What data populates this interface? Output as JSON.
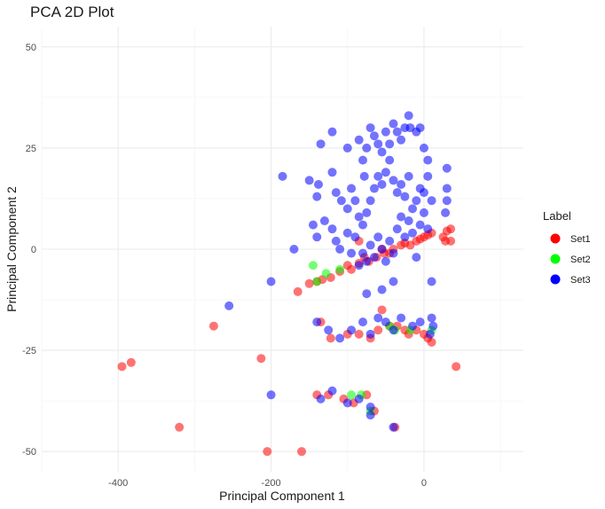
{
  "chart_data": {
    "type": "scatter",
    "title": "PCA 2D Plot",
    "xlabel": "Principal Component 1",
    "ylabel": "Principal Component 2",
    "xlim": [
      -500,
      130
    ],
    "ylim": [
      -55,
      55
    ],
    "x_ticks": [
      -400,
      -200,
      0
    ],
    "y_ticks": [
      -50,
      -25,
      0,
      25,
      50
    ],
    "grid": true,
    "legend": {
      "title": "Label",
      "placement": "right",
      "entries": [
        {
          "name": "Set1",
          "color": "#ff0000"
        },
        {
          "name": "Set2",
          "color": "#00ff00"
        },
        {
          "name": "Set3",
          "color": "#0000ff"
        }
      ]
    },
    "series": [
      {
        "name": "Set1",
        "color": "#ff0000",
        "points": [
          [
            -395,
            -29
          ],
          [
            -383,
            -28
          ],
          [
            -320,
            -44
          ],
          [
            -275,
            -19
          ],
          [
            -213,
            -27
          ],
          [
            -205,
            -50
          ],
          [
            -160,
            -50
          ],
          [
            -165,
            -10.5
          ],
          [
            -150,
            -8.5
          ],
          [
            -140,
            -8
          ],
          [
            -133,
            -7.5
          ],
          [
            -122,
            -7
          ],
          [
            -110,
            -5.5
          ],
          [
            -95,
            -5
          ],
          [
            -85,
            -3.5
          ],
          [
            -72,
            -3
          ],
          [
            -62,
            -2
          ],
          [
            -52,
            -1
          ],
          [
            -40,
            0
          ],
          [
            -30,
            1
          ],
          [
            -25,
            1.5
          ],
          [
            -18,
            1
          ],
          [
            -10,
            2
          ],
          [
            -5,
            2.5
          ],
          [
            0,
            3
          ],
          [
            5,
            3.5
          ],
          [
            10,
            4
          ],
          [
            25,
            3
          ],
          [
            30,
            4.5
          ],
          [
            35,
            5
          ],
          [
            28,
            2
          ],
          [
            35,
            2
          ],
          [
            -135,
            -18
          ],
          [
            -122,
            -22
          ],
          [
            -100,
            -21
          ],
          [
            -85,
            -21
          ],
          [
            -70,
            -22
          ],
          [
            -60,
            -20
          ],
          [
            -55,
            -15
          ],
          [
            -45,
            -19
          ],
          [
            -35,
            -19
          ],
          [
            -25,
            -20
          ],
          [
            -20,
            -21
          ],
          [
            -10,
            -20
          ],
          [
            0,
            -21
          ],
          [
            5,
            -22
          ],
          [
            10,
            -23
          ],
          [
            -140,
            -36
          ],
          [
            -125,
            -36
          ],
          [
            -105,
            -37
          ],
          [
            -92,
            -38
          ],
          [
            -75,
            -36
          ],
          [
            -65,
            -40
          ],
          [
            -38,
            -44
          ],
          [
            42,
            -29
          ],
          [
            -85,
            2
          ],
          [
            -78,
            -2
          ],
          [
            -100,
            -4
          ],
          [
            -55,
            0
          ],
          [
            -45,
            -1
          ]
        ]
      },
      {
        "name": "Set2",
        "color": "#00ff00",
        "points": [
          [
            -145,
            -4
          ],
          [
            -140,
            -8
          ],
          [
            -128,
            -6
          ],
          [
            -110,
            -5
          ],
          [
            -95,
            -36
          ],
          [
            -82,
            -36
          ],
          [
            -70,
            -40
          ],
          [
            -45,
            -19
          ],
          [
            -38,
            -20
          ],
          [
            -18,
            -20
          ],
          [
            10,
            -20
          ]
        ]
      },
      {
        "name": "Set3",
        "color": "#0000ff",
        "points": [
          [
            -135,
            26
          ],
          [
            -120,
            29
          ],
          [
            -100,
            25
          ],
          [
            -85,
            27
          ],
          [
            -80,
            22
          ],
          [
            -78,
            18
          ],
          [
            -75,
            25
          ],
          [
            -70,
            30
          ],
          [
            -65,
            28
          ],
          [
            -60,
            26
          ],
          [
            -55,
            24
          ],
          [
            -50,
            29
          ],
          [
            -45,
            26
          ],
          [
            -40,
            31
          ],
          [
            -35,
            29
          ],
          [
            -30,
            27
          ],
          [
            -25,
            30
          ],
          [
            -20,
            33
          ],
          [
            -18,
            30
          ],
          [
            -10,
            29
          ],
          [
            -5,
            30
          ],
          [
            0,
            25
          ],
          [
            5,
            22
          ],
          [
            -150,
            17
          ],
          [
            -140,
            13
          ],
          [
            -138,
            16
          ],
          [
            -120,
            19
          ],
          [
            -115,
            14
          ],
          [
            -108,
            12
          ],
          [
            -100,
            10
          ],
          [
            -95,
            15
          ],
          [
            -90,
            12
          ],
          [
            -85,
            8
          ],
          [
            -80,
            6
          ],
          [
            -75,
            9
          ],
          [
            -70,
            12
          ],
          [
            -65,
            15
          ],
          [
            -60,
            18
          ],
          [
            -55,
            16
          ],
          [
            -50,
            19
          ],
          [
            -45,
            22
          ],
          [
            -40,
            17
          ],
          [
            -35,
            14
          ],
          [
            -30,
            16
          ],
          [
            -25,
            13
          ],
          [
            -20,
            18
          ],
          [
            -15,
            10
          ],
          [
            -10,
            12
          ],
          [
            -5,
            15
          ],
          [
            0,
            14
          ],
          [
            5,
            18
          ],
          [
            10,
            12
          ],
          [
            30,
            20
          ],
          [
            30,
            15
          ],
          [
            30,
            12
          ],
          [
            28,
            9
          ],
          [
            -185,
            18
          ],
          [
            -170,
            0
          ],
          [
            -145,
            6
          ],
          [
            -140,
            3
          ],
          [
            -130,
            7
          ],
          [
            -120,
            5
          ],
          [
            -115,
            2
          ],
          [
            -110,
            0
          ],
          [
            -100,
            4
          ],
          [
            -95,
            -1
          ],
          [
            -90,
            3
          ],
          [
            -85,
            -4
          ],
          [
            -80,
            -1
          ],
          [
            -75,
            -3
          ],
          [
            -70,
            1
          ],
          [
            -65,
            -2
          ],
          [
            -60,
            3
          ],
          [
            -55,
            0
          ],
          [
            -50,
            -3
          ],
          [
            -45,
            2
          ],
          [
            -40,
            -1
          ],
          [
            -35,
            5
          ],
          [
            -30,
            8
          ],
          [
            -25,
            3
          ],
          [
            -20,
            7
          ],
          [
            -15,
            4
          ],
          [
            -10,
            -2
          ],
          [
            -5,
            6
          ],
          [
            0,
            9
          ],
          [
            5,
            5
          ],
          [
            10,
            -8
          ],
          [
            -40,
            -8
          ],
          [
            -55,
            -10
          ],
          [
            -75,
            -11
          ],
          [
            -200,
            -8
          ],
          [
            -255,
            -14
          ],
          [
            -140,
            -18
          ],
          [
            -125,
            -20
          ],
          [
            -110,
            -22
          ],
          [
            -95,
            -20
          ],
          [
            -80,
            -18
          ],
          [
            -70,
            -21
          ],
          [
            -60,
            -17
          ],
          [
            -50,
            -18
          ],
          [
            -40,
            -20
          ],
          [
            -30,
            -17
          ],
          [
            -15,
            -19
          ],
          [
            -5,
            -18
          ],
          [
            8,
            -21
          ],
          [
            10,
            -17
          ],
          [
            12,
            -19
          ],
          [
            -200,
            -36
          ],
          [
            -135,
            -37
          ],
          [
            -120,
            -35
          ],
          [
            -100,
            -38
          ],
          [
            -85,
            -37
          ],
          [
            -70,
            -39
          ],
          [
            -70,
            -41
          ],
          [
            -40,
            -44
          ]
        ]
      }
    ]
  }
}
